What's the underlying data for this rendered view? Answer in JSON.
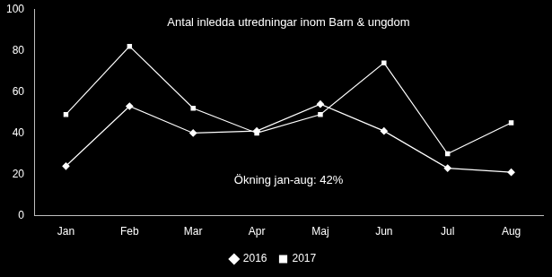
{
  "chart_data": {
    "type": "line",
    "title": "Antal inledda utredningar inom Barn & ungdom",
    "annotations": [
      "Ökning jan-aug: 42%"
    ],
    "categories": [
      "Jan",
      "Feb",
      "Mar",
      "Apr",
      "Maj",
      "Jun",
      "Jul",
      "Aug"
    ],
    "series": [
      {
        "name": "2016",
        "color": "#ffffff",
        "marker": "diamond",
        "line_style": "solid",
        "values": [
          24,
          53,
          40,
          41,
          54,
          41,
          23,
          21
        ]
      },
      {
        "name": "2017",
        "color": "#ffffff",
        "marker": "square",
        "line_style": "solid",
        "values": [
          49,
          82,
          52,
          40,
          49,
          74,
          30,
          45
        ]
      }
    ],
    "ylim": [
      0,
      100
    ],
    "yticks": [
      0,
      20,
      40,
      60,
      80,
      100
    ],
    "grid": false,
    "legend": "bottom"
  }
}
